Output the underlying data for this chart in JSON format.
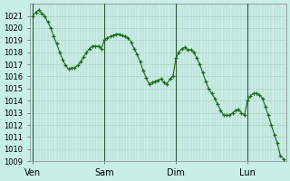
{
  "background_color": "#c8eee8",
  "grid_color": "#aaccbb",
  "line_color": "#1a6b1a",
  "marker_color": "#1a6b1a",
  "ylim": [
    1009,
    1022
  ],
  "yticks": [
    1009,
    1010,
    1011,
    1012,
    1013,
    1014,
    1015,
    1016,
    1017,
    1018,
    1019,
    1020,
    1021
  ],
  "xtick_labels": [
    "Ven",
    "Sam",
    "Dim",
    "Lun"
  ],
  "xtick_positions": [
    0,
    24,
    48,
    72
  ],
  "xlim": [
    -1,
    85
  ],
  "x_values": [
    0,
    1,
    2,
    3,
    4,
    5,
    6,
    7,
    8,
    9,
    10,
    11,
    12,
    13,
    14,
    15,
    16,
    17,
    18,
    19,
    20,
    21,
    22,
    23,
    24,
    25,
    26,
    27,
    28,
    29,
    30,
    31,
    32,
    33,
    34,
    35,
    36,
    37,
    38,
    39,
    40,
    41,
    42,
    43,
    44,
    45,
    46,
    47,
    48,
    49,
    50,
    51,
    52,
    53,
    54,
    55,
    56,
    57,
    58,
    59,
    60,
    61,
    62,
    63,
    64,
    65,
    66,
    67,
    68,
    69,
    70,
    71,
    72,
    73,
    74,
    75,
    76,
    77,
    78,
    79,
    80,
    81,
    82,
    83,
    84
  ],
  "y_values": [
    1021.0,
    1021.3,
    1021.5,
    1021.2,
    1021.0,
    1020.5,
    1020.0,
    1019.3,
    1018.7,
    1018.0,
    1017.4,
    1016.9,
    1016.6,
    1016.7,
    1016.7,
    1016.9,
    1017.2,
    1017.6,
    1018.0,
    1018.3,
    1018.5,
    1018.5,
    1018.5,
    1018.3,
    1019.0,
    1019.2,
    1019.3,
    1019.4,
    1019.5,
    1019.5,
    1019.4,
    1019.3,
    1019.2,
    1018.8,
    1018.3,
    1017.8,
    1017.2,
    1016.5,
    1015.9,
    1015.4,
    1015.5,
    1015.6,
    1015.7,
    1015.8,
    1015.5,
    1015.4,
    1015.8,
    1016.0,
    1017.5,
    1018.0,
    1018.3,
    1018.4,
    1018.2,
    1018.2,
    1018.0,
    1017.5,
    1017.0,
    1016.3,
    1015.6,
    1015.0,
    1014.6,
    1014.2,
    1013.7,
    1013.2,
    1012.8,
    1012.8,
    1012.8,
    1013.0,
    1013.2,
    1013.3,
    1013.0,
    1012.8,
    1014.0,
    1014.4,
    1014.6,
    1014.6,
    1014.5,
    1014.2,
    1013.5,
    1012.8,
    1012.0,
    1011.2,
    1010.5,
    1009.5,
    1009.2
  ]
}
